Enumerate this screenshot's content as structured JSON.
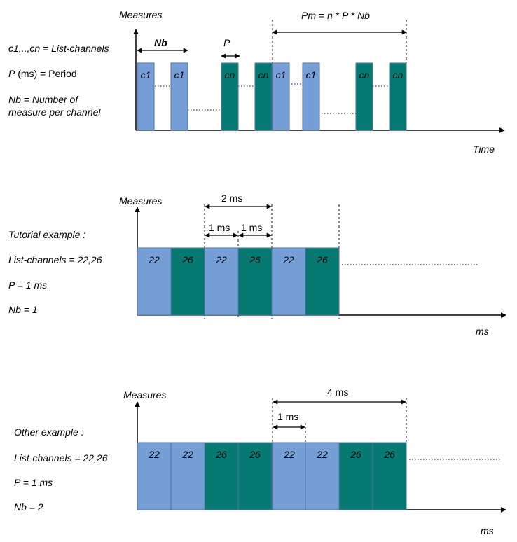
{
  "colors": {
    "blue": "#779fd7",
    "teal": "#067a72",
    "border": "#54709e",
    "line": "#000000",
    "dots": "#2a3e8f"
  },
  "diagram1": {
    "y_axis_label": "Measures",
    "x_axis_label": "Time",
    "legend": {
      "channels": "c1,..,cn = List-channels",
      "period_p": "P",
      "period_rest": " (ms) = Period",
      "nb_line1": "Nb = Number of",
      "nb_line2": "measure per channel"
    },
    "nb_label": "Nb",
    "p_label": "P",
    "pm_label": "Pm = n * P * Nb",
    "bars": [
      "c1",
      "c1",
      "cn",
      "cn",
      "c1",
      "c1",
      "cn",
      "cn"
    ]
  },
  "diagram2": {
    "y_axis_label": "Measures",
    "x_axis_label": "ms",
    "text_lines": [
      "Tutorial example :",
      "List-channels = 22,26",
      "P  = 1 ms",
      "Nb = 1"
    ],
    "dim_2ms": "2 ms",
    "dim_1ms_a": "1 ms",
    "dim_1ms_b": "1 ms",
    "blocks": [
      "22",
      "26",
      "22",
      "26",
      "22",
      "26"
    ]
  },
  "diagram3": {
    "y_axis_label": "Measures",
    "x_axis_label": "ms",
    "text_lines": [
      "Other example :",
      "List-channels = 22,26",
      "P  = 1 ms",
      "Nb = 2"
    ],
    "dim_4ms": "4 ms",
    "dim_1ms": "1 ms",
    "blocks": [
      "22",
      "22",
      "26",
      "26",
      "22",
      "22",
      "26",
      "26"
    ]
  }
}
